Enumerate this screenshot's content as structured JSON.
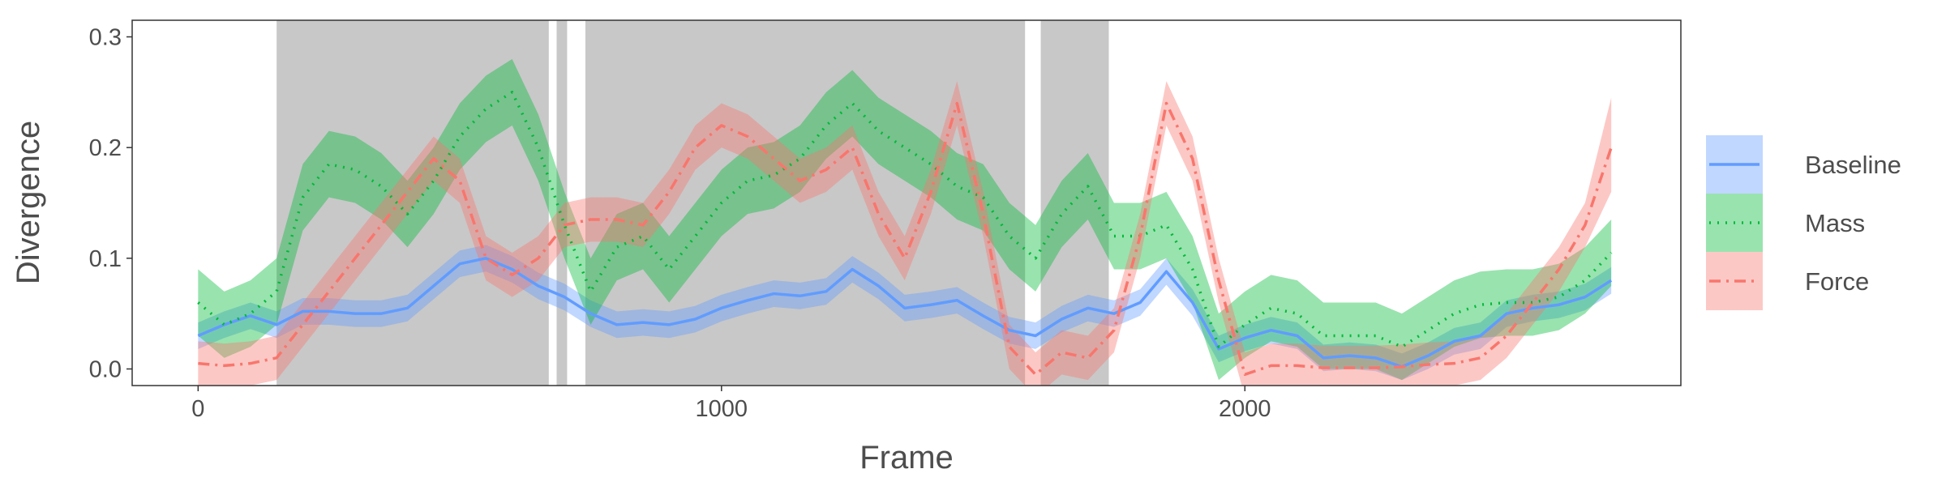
{
  "chart_data": {
    "type": "line",
    "xlabel": "Frame",
    "ylabel": "Divergence",
    "xlim": [
      -126,
      2833
    ],
    "ylim": [
      -0.015,
      0.315
    ],
    "xticks": [
      0,
      1000,
      2000
    ],
    "yticks": [
      {
        "value": 0,
        "label": "0.0"
      },
      0.1,
      0.2,
      0.3
    ],
    "legend": "right",
    "shaded_regions": [
      [
        150,
        670
      ],
      [
        685,
        705
      ],
      [
        740,
        1580
      ],
      [
        1610,
        1740
      ]
    ],
    "shade_color": "#c8c8c8",
    "x": [
      0,
      50,
      100,
      150,
      200,
      250,
      300,
      350,
      400,
      450,
      500,
      550,
      600,
      650,
      700,
      750,
      800,
      850,
      900,
      950,
      1000,
      1050,
      1100,
      1150,
      1200,
      1250,
      1300,
      1350,
      1400,
      1450,
      1500,
      1550,
      1600,
      1650,
      1700,
      1750,
      1800,
      1850,
      1900,
      1950,
      2000,
      2050,
      2100,
      2150,
      2200,
      2250,
      2300,
      2350,
      2400,
      2450,
      2500,
      2550,
      2600,
      2650,
      2700
    ],
    "series": [
      {
        "name": "Baseline",
        "color": "#619cff",
        "linestyle": "solid",
        "values": [
          0.03,
          0.04,
          0.048,
          0.04,
          0.052,
          0.052,
          0.05,
          0.05,
          0.055,
          0.075,
          0.095,
          0.1,
          0.09,
          0.075,
          0.065,
          0.05,
          0.04,
          0.042,
          0.04,
          0.045,
          0.055,
          0.062,
          0.068,
          0.066,
          0.07,
          0.09,
          0.075,
          0.055,
          0.058,
          0.062,
          0.048,
          0.035,
          0.03,
          0.045,
          0.055,
          0.05,
          0.06,
          0.088,
          0.06,
          0.018,
          0.028,
          0.035,
          0.03,
          0.01,
          0.012,
          0.01,
          0.002,
          0.012,
          0.025,
          0.03,
          0.05,
          0.055,
          0.058,
          0.065,
          0.08
        ],
        "lower": [
          0.018,
          0.028,
          0.036,
          0.028,
          0.04,
          0.04,
          0.038,
          0.038,
          0.043,
          0.063,
          0.083,
          0.088,
          0.078,
          0.063,
          0.053,
          0.038,
          0.028,
          0.03,
          0.028,
          0.033,
          0.043,
          0.05,
          0.056,
          0.054,
          0.058,
          0.078,
          0.063,
          0.043,
          0.046,
          0.05,
          0.036,
          0.023,
          0.018,
          0.033,
          0.043,
          0.038,
          0.048,
          0.076,
          0.048,
          0.006,
          0.016,
          0.023,
          0.018,
          -0.002,
          0,
          -0.002,
          -0.01,
          0,
          0.013,
          0.018,
          0.038,
          0.043,
          0.046,
          0.053,
          0.068
        ],
        "upper": [
          0.042,
          0.052,
          0.06,
          0.052,
          0.064,
          0.064,
          0.062,
          0.062,
          0.067,
          0.087,
          0.107,
          0.112,
          0.102,
          0.087,
          0.077,
          0.062,
          0.052,
          0.054,
          0.052,
          0.057,
          0.067,
          0.074,
          0.08,
          0.078,
          0.082,
          0.102,
          0.087,
          0.067,
          0.07,
          0.074,
          0.06,
          0.047,
          0.042,
          0.057,
          0.067,
          0.062,
          0.072,
          0.1,
          0.072,
          0.03,
          0.04,
          0.047,
          0.042,
          0.022,
          0.024,
          0.022,
          0.014,
          0.024,
          0.037,
          0.042,
          0.062,
          0.067,
          0.07,
          0.077,
          0.092
        ]
      },
      {
        "name": "Mass",
        "color": "#00ba38",
        "linestyle": "dotted",
        "values": [
          0.06,
          0.04,
          0.05,
          0.07,
          0.155,
          0.185,
          0.18,
          0.165,
          0.14,
          0.17,
          0.21,
          0.235,
          0.25,
          0.2,
          0.13,
          0.07,
          0.11,
          0.12,
          0.09,
          0.12,
          0.15,
          0.17,
          0.175,
          0.19,
          0.22,
          0.24,
          0.215,
          0.2,
          0.185,
          0.165,
          0.155,
          0.12,
          0.1,
          0.14,
          0.165,
          0.12,
          0.12,
          0.13,
          0.09,
          0.02,
          0.04,
          0.055,
          0.05,
          0.03,
          0.03,
          0.03,
          0.02,
          0.035,
          0.05,
          0.058,
          0.06,
          0.06,
          0.065,
          0.08,
          0.105
        ],
        "lower": [
          0.03,
          0.01,
          0.02,
          0.04,
          0.125,
          0.155,
          0.15,
          0.135,
          0.11,
          0.14,
          0.18,
          0.205,
          0.22,
          0.17,
          0.1,
          0.04,
          0.08,
          0.09,
          0.06,
          0.09,
          0.12,
          0.14,
          0.145,
          0.16,
          0.19,
          0.21,
          0.185,
          0.17,
          0.155,
          0.135,
          0.125,
          0.09,
          0.07,
          0.11,
          0.135,
          0.09,
          0.09,
          0.1,
          0.06,
          -0.01,
          0.01,
          0.025,
          0.02,
          0,
          0,
          0,
          -0.01,
          0.005,
          0.02,
          0.028,
          0.03,
          0.03,
          0.035,
          0.05,
          0.075
        ],
        "upper": [
          0.09,
          0.07,
          0.08,
          0.1,
          0.185,
          0.215,
          0.21,
          0.195,
          0.17,
          0.2,
          0.24,
          0.265,
          0.28,
          0.23,
          0.16,
          0.1,
          0.14,
          0.15,
          0.12,
          0.15,
          0.18,
          0.2,
          0.205,
          0.22,
          0.25,
          0.27,
          0.245,
          0.23,
          0.215,
          0.195,
          0.185,
          0.15,
          0.13,
          0.17,
          0.195,
          0.15,
          0.15,
          0.16,
          0.12,
          0.05,
          0.07,
          0.085,
          0.08,
          0.06,
          0.06,
          0.06,
          0.05,
          0.065,
          0.08,
          0.088,
          0.09,
          0.09,
          0.095,
          0.11,
          0.135
        ]
      },
      {
        "name": "Force",
        "color": "#f8766d",
        "linestyle": "dashdot",
        "values": [
          0.005,
          0.003,
          0.005,
          0.01,
          0.04,
          0.07,
          0.1,
          0.13,
          0.16,
          0.19,
          0.17,
          0.1,
          0.085,
          0.1,
          0.13,
          0.135,
          0.135,
          0.13,
          0.16,
          0.2,
          0.22,
          0.21,
          0.19,
          0.17,
          0.18,
          0.2,
          0.14,
          0.1,
          0.16,
          0.24,
          0.14,
          0.02,
          -0.005,
          0.015,
          0.01,
          0.035,
          0.12,
          0.24,
          0.19,
          0.08,
          -0.005,
          0.003,
          0.003,
          0.001,
          0.001,
          0.001,
          0.002,
          0.004,
          0.005,
          0.01,
          0.03,
          0.06,
          0.09,
          0.13,
          0.2
        ],
        "lower": [
          -0.015,
          -0.017,
          -0.015,
          -0.01,
          0.02,
          0.05,
          0.08,
          0.11,
          0.14,
          0.17,
          0.15,
          0.08,
          0.065,
          0.08,
          0.11,
          0.115,
          0.115,
          0.11,
          0.14,
          0.18,
          0.2,
          0.19,
          0.17,
          0.15,
          0.16,
          0.18,
          0.12,
          0.08,
          0.14,
          0.22,
          0.12,
          0,
          -0.025,
          -0.005,
          -0.01,
          0.015,
          0.1,
          0.22,
          0.17,
          0.06,
          -0.025,
          -0.017,
          -0.017,
          -0.019,
          -0.019,
          -0.019,
          -0.018,
          -0.016,
          -0.015,
          -0.01,
          0.01,
          0.04,
          0.07,
          0.11,
          0.16
        ],
        "upper": [
          0.025,
          0.023,
          0.025,
          0.03,
          0.06,
          0.09,
          0.12,
          0.15,
          0.18,
          0.21,
          0.19,
          0.12,
          0.105,
          0.12,
          0.15,
          0.155,
          0.155,
          0.15,
          0.18,
          0.22,
          0.24,
          0.23,
          0.21,
          0.19,
          0.2,
          0.22,
          0.16,
          0.12,
          0.18,
          0.26,
          0.16,
          0.04,
          0.015,
          0.035,
          0.03,
          0.055,
          0.14,
          0.26,
          0.21,
          0.1,
          0.015,
          0.023,
          0.023,
          0.021,
          0.021,
          0.021,
          0.022,
          0.024,
          0.025,
          0.03,
          0.05,
          0.08,
          0.11,
          0.15,
          0.245
        ]
      }
    ]
  }
}
